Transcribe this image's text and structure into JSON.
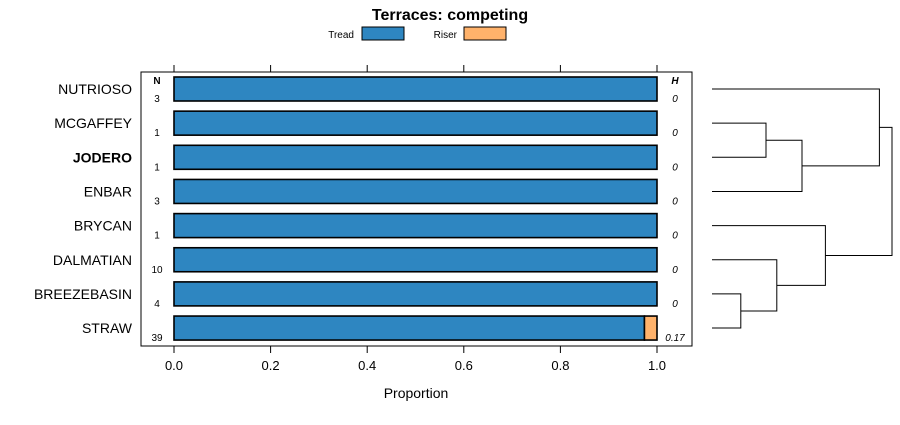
{
  "chart_data": {
    "type": "bar",
    "orientation": "horizontal",
    "stacked": true,
    "title": "Terraces: competing",
    "xlabel": "Proportion",
    "xlim": [
      0,
      1
    ],
    "xticks": [
      "0.0",
      "0.2",
      "0.4",
      "0.6",
      "0.8",
      "1.0"
    ],
    "n_header": "N",
    "h_header": "H",
    "legend": [
      {
        "name": "Tread",
        "color": "#2E86C1"
      },
      {
        "name": "Riser",
        "color": "#FFB26B"
      }
    ],
    "categories": [
      "NUTRIOSO",
      "MCGAFFEY",
      "JODERO",
      "ENBAR",
      "BRYCAN",
      "DALMATIAN",
      "BREEZEBASIN",
      "STRAW"
    ],
    "highlighted": [
      "JODERO"
    ],
    "n": [
      "3",
      "1",
      "1",
      "3",
      "1",
      "10",
      "4",
      "39"
    ],
    "h": [
      "0",
      "0",
      "0",
      "0",
      "0",
      "0",
      "0",
      "0.17"
    ],
    "series": [
      {
        "name": "Tread",
        "values": [
          1,
          1,
          1,
          1,
          1,
          1,
          1,
          0.974
        ]
      },
      {
        "name": "Riser",
        "values": [
          0,
          0,
          0,
          0,
          0,
          0,
          0,
          0.026
        ]
      }
    ],
    "dendrogram": {
      "leaves": [
        "NUTRIOSO",
        "MCGAFFEY",
        "JODERO",
        "ENBAR",
        "BRYCAN",
        "DALMATIAN",
        "BREEZEBASIN",
        "STRAW"
      ],
      "merges": [
        {
          "left": "MCGAFFEY",
          "right": "JODERO",
          "height": 0.3
        },
        {
          "left": "BREEZEBASIN",
          "right": "STRAW",
          "height": 0.16
        },
        {
          "left": "DALMATIAN",
          "right": "BREEZEBASIN+STRAW",
          "height": 0.36
        },
        {
          "left": "MCGAFFEY+JODERO",
          "right": "ENBAR",
          "height": 0.5
        },
        {
          "left": "BRYCAN",
          "right": "DALMATIAN+BREEZEBASIN+STRAW",
          "height": 0.63
        },
        {
          "left": "NUTRIOSO",
          "right": "MCGAFFEY+JODERO+ENBAR",
          "height": 0.93
        },
        {
          "left": "NUTRIOSO+MCGAFFEY+JODERO+ENBAR",
          "right": "BRYCAN+DALMATIAN+BREEZEBASIN+STRAW",
          "height": 1.0
        }
      ]
    }
  }
}
